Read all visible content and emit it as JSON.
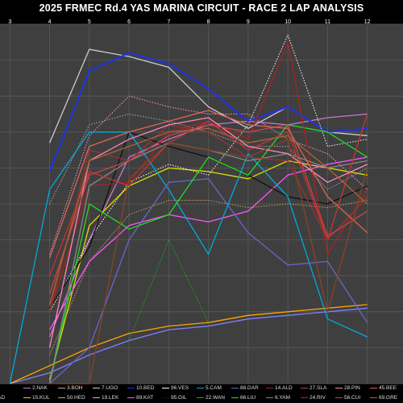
{
  "title": "2025 FRMEC Rd.4 YAS MARINA CIRCUIT - RACE 2 LAP ANALYSIS",
  "chart_data": {
    "type": "line",
    "x_tick_labels": [
      "3",
      "4",
      "5",
      "6",
      "7",
      "8",
      "9",
      "10",
      "11",
      "12"
    ],
    "x_ticks": [
      3,
      4,
      5,
      6,
      7,
      8,
      9,
      10,
      11,
      12
    ],
    "xlim": [
      2.75,
      12.9
    ],
    "ylim": [
      0,
      100
    ],
    "grid": true,
    "background": "#3f3f3f",
    "legend_placement": "bottom",
    "series": [
      {
        "name": "",
        "color": "#8080ff",
        "style": "solid",
        "x": [
          3,
          4,
          5,
          6,
          7,
          8,
          9,
          10,
          11,
          12
        ],
        "y": [
          0,
          3,
          8,
          12,
          15,
          16,
          18,
          19,
          20,
          21
        ]
      },
      {
        "name": "",
        "color": "#ffa500",
        "style": "solid",
        "x": [
          3,
          4,
          5,
          6,
          7,
          8,
          9,
          10,
          11,
          12
        ],
        "y": [
          0,
          5,
          10,
          14,
          16,
          17,
          19,
          20,
          21,
          22
        ]
      },
      {
        "name": "2.NAK",
        "color": "#cc77cc",
        "style": "solid",
        "x": [
          4,
          5,
          6,
          7,
          8,
          9,
          10,
          11,
          12
        ],
        "y": [
          13,
          40,
          63,
          68,
          72,
          73,
          72,
          74,
          75
        ]
      },
      {
        "name": "15.KUL",
        "color": "#dddd00",
        "style": "solid",
        "x": [
          4,
          5,
          6,
          7,
          8,
          9,
          10,
          11,
          12
        ],
        "y": [
          1,
          44,
          55,
          60,
          59,
          57,
          62,
          60,
          58
        ]
      },
      {
        "name": "3.BOH",
        "color": "#aaaaaa",
        "style": "dotted",
        "x": [
          4,
          5,
          6,
          7,
          8,
          9,
          10,
          11,
          12
        ],
        "y": [
          50,
          72,
          75,
          73,
          70,
          66,
          66,
          54,
          60
        ]
      },
      {
        "name": "50.HED",
        "color": "#c8a060",
        "style": "dotted",
        "x": [
          4,
          5,
          6,
          7,
          8,
          9,
          10,
          11,
          12
        ],
        "y": [
          8,
          34,
          47,
          51,
          51,
          49,
          50,
          49,
          51
        ]
      },
      {
        "name": "7.UGO",
        "color": "#cccccc",
        "style": "solid",
        "x": [
          4,
          5,
          6,
          7,
          8,
          9,
          10,
          11,
          12
        ],
        "y": [
          67,
          93,
          91,
          88,
          77,
          71,
          77,
          70,
          69
        ]
      },
      {
        "name": "19.LEK",
        "color": "#ff99cc",
        "style": "dotted",
        "x": [
          4,
          5,
          6,
          7,
          8,
          9,
          10,
          11,
          12
        ],
        "y": [
          36,
          69,
          80,
          77,
          75,
          75,
          68,
          64,
          54
        ]
      },
      {
        "name": "10.BED",
        "color": "#2233dd",
        "style": "solid",
        "x": [
          4,
          5,
          6,
          7,
          8,
          9,
          10,
          11,
          12
        ],
        "y": [
          59,
          87,
          92,
          89,
          82,
          73,
          77,
          70,
          71
        ]
      },
      {
        "name": "89.KAT",
        "color": "#ff55ff",
        "style": "solid",
        "x": [
          4,
          5,
          6,
          7,
          8,
          9,
          10,
          11,
          12
        ],
        "y": [
          15,
          34,
          44,
          47,
          45,
          48,
          58,
          61,
          63
        ]
      },
      {
        "name": "96.VES",
        "color": "#ffffff",
        "style": "dotted",
        "x": [
          4,
          5,
          6,
          7,
          8,
          9,
          10,
          11,
          12
        ],
        "y": [
          20,
          40,
          56,
          61,
          58,
          72,
          97,
          66,
          68
        ]
      },
      {
        "name": "95.GIL",
        "color": "#111111",
        "style": "solid",
        "x": [
          4,
          5,
          6,
          7,
          8,
          9,
          10,
          11,
          12
        ],
        "y": [
          21,
          38,
          70,
          66,
          63,
          58,
          52,
          50,
          55
        ]
      },
      {
        "name": "5.CAM",
        "color": "#00aadd",
        "style": "solid",
        "x": [
          3,
          4,
          5,
          6,
          7,
          8,
          9,
          10,
          11,
          12
        ],
        "y": [
          0,
          54,
          70,
          70,
          54,
          36,
          64,
          52,
          18,
          13
        ]
      },
      {
        "name": "22.WAN",
        "color": "#22aa22",
        "style": "dotted",
        "x": [
          6,
          7,
          8
        ],
        "y": [
          12,
          40,
          17
        ]
      },
      {
        "name": "88.DAR",
        "color": "#6666cc",
        "style": "solid",
        "x": [
          4,
          5,
          6,
          7,
          8,
          9,
          10,
          11,
          12
        ],
        "y": [
          0,
          10,
          40,
          56,
          57,
          42,
          33,
          34,
          17
        ]
      },
      {
        "name": "66.LIU",
        "color": "#22dd22",
        "style": "solid",
        "x": [
          4,
          5,
          6,
          7,
          8,
          9,
          10,
          11,
          12
        ],
        "y": [
          0,
          50,
          43,
          47,
          63,
          58,
          72,
          70,
          63
        ]
      },
      {
        "name": "14.ALD",
        "color": "#aa2222",
        "style": "solid",
        "x": [
          4,
          5,
          6,
          7,
          8,
          9,
          10,
          11,
          12
        ],
        "y": [
          20,
          55,
          56,
          70,
          73,
          68,
          95,
          36,
          54
        ]
      },
      {
        "name": "6.YAM",
        "color": "#888888",
        "style": "solid",
        "x": [
          4,
          5,
          6,
          7,
          8,
          9,
          10,
          11,
          12
        ],
        "y": [
          0,
          55,
          62,
          67,
          65,
          62,
          64,
          60,
          62
        ]
      },
      {
        "name": "27.SLA",
        "color": "#cc3333",
        "style": "solid",
        "x": [
          4,
          5,
          6,
          7,
          8,
          9,
          10,
          11,
          12
        ],
        "y": [
          30,
          59,
          55,
          67,
          73,
          65,
          70,
          40,
          75
        ]
      },
      {
        "name": "24.RIV",
        "color": "#993333",
        "style": "solid",
        "x": [
          4,
          5,
          6,
          7,
          8,
          9,
          10,
          11,
          12
        ],
        "y": [
          20,
          65,
          62,
          72,
          70,
          63,
          62,
          40,
          52
        ]
      },
      {
        "name": "28.PIN",
        "color": "#ff88bb",
        "style": "solid",
        "x": [
          4,
          5,
          6,
          7,
          8,
          9,
          10,
          11,
          12
        ],
        "y": [
          10,
          62,
          68,
          72,
          74,
          66,
          64,
          56,
          61
        ]
      },
      {
        "name": "56.CUI",
        "color": "#cc4444",
        "style": "solid",
        "x": [
          4,
          5,
          6,
          7,
          8,
          9,
          10,
          11,
          12
        ],
        "y": [
          25,
          58,
          62,
          69,
          72,
          70,
          72,
          41,
          48
        ]
      },
      {
        "name": "45.BEE",
        "color": "#dd6655",
        "style": "solid",
        "x": [
          4,
          5,
          6,
          7,
          8,
          9,
          10,
          11,
          12
        ],
        "y": [
          35,
          66,
          70,
          73,
          76,
          72,
          71,
          52,
          42
        ]
      },
      {
        "name": "69.GRE",
        "color": "#aa6633",
        "style": "solid",
        "x": [
          4,
          5,
          6,
          7,
          8,
          9,
          10,
          11,
          12
        ],
        "y": [
          22,
          62,
          66,
          70,
          71,
          67,
          69,
          60,
          50
        ]
      },
      {
        "name": "",
        "color": "#884422",
        "style": "solid",
        "x": [
          4,
          5,
          6,
          7,
          8,
          9,
          10,
          11,
          12
        ],
        "y": [
          0,
          0,
          57,
          67,
          65,
          63,
          68,
          20,
          60
        ]
      }
    ]
  },
  "legend": {
    "row1": [
      {
        "label": "",
        "color": "#8080ff"
      },
      {
        "label": "2.NAK",
        "color": "#cc77cc"
      },
      {
        "label": "3.BOH",
        "color": "#aaaaaa"
      },
      {
        "label": "7.UGO",
        "color": "#cccccc"
      },
      {
        "label": "10.BED",
        "color": "#2233dd"
      },
      {
        "label": "96.VES",
        "color": "#ffffff"
      },
      {
        "label": "5.CAM",
        "color": "#00aadd"
      },
      {
        "label": "88.DAR",
        "color": "#6666cc"
      },
      {
        "label": "14.ALD",
        "color": "#aa2222"
      },
      {
        "label": "27.SLA",
        "color": "#cc3333"
      },
      {
        "label": "28.PIN",
        "color": "#ff88bb"
      },
      {
        "label": "45.BEE",
        "color": "#dd6655"
      }
    ],
    "row2": [
      {
        "label": "AD",
        "color": "#ffa500"
      },
      {
        "label": "15.KUL",
        "color": "#dddd00"
      },
      {
        "label": "50.HED",
        "color": "#c8a060"
      },
      {
        "label": "19.LEK",
        "color": "#ff99cc"
      },
      {
        "label": "89.KAT",
        "color": "#ff55ff"
      },
      {
        "label": "95.GIL",
        "color": "#111111"
      },
      {
        "label": "22.WAN",
        "color": "#22aa22"
      },
      {
        "label": "66.LIU",
        "color": "#22dd22"
      },
      {
        "label": "6.YAM",
        "color": "#888888"
      },
      {
        "label": "24.RIV",
        "color": "#993333"
      },
      {
        "label": "56.CUI",
        "color": "#cc4444"
      },
      {
        "label": "69.GRE",
        "color": "#aa6633"
      }
    ]
  }
}
